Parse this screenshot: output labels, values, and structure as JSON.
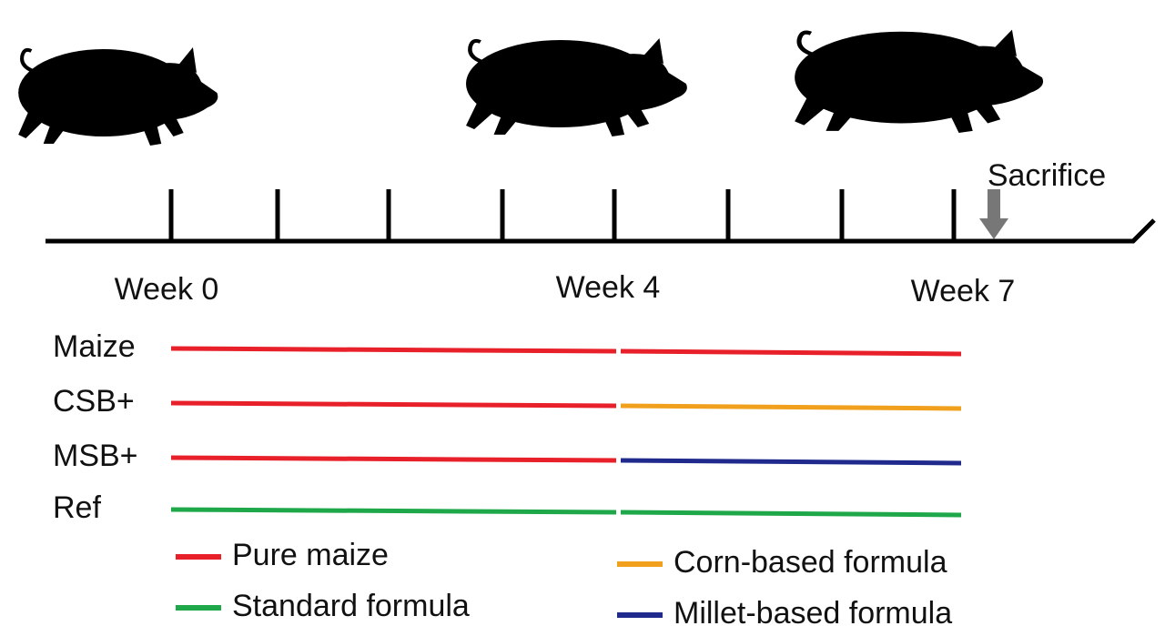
{
  "timeline": {
    "labels": [
      "Week 0",
      "Week 4",
      "Week 7"
    ],
    "event": "Sacrifice"
  },
  "groups": [
    {
      "label": "Maize",
      "colors": [
        "#e8202a",
        "#e8202a"
      ]
    },
    {
      "label": "CSB+",
      "colors": [
        "#e8202a",
        "#f0a01c"
      ]
    },
    {
      "label": "MSB+",
      "colors": [
        "#e8202a",
        "#1f2a8c"
      ]
    },
    {
      "label": "Ref",
      "colors": [
        "#1ea84a",
        "#1ea84a"
      ]
    }
  ],
  "legend": [
    {
      "name": "Pure maize",
      "color": "#e8202a"
    },
    {
      "name": "Corn-based formula",
      "color": "#f0a01c"
    },
    {
      "name": "Standard formula",
      "color": "#1ea84a"
    },
    {
      "name": "Millet-based formula",
      "color": "#1f2a8c"
    }
  ]
}
